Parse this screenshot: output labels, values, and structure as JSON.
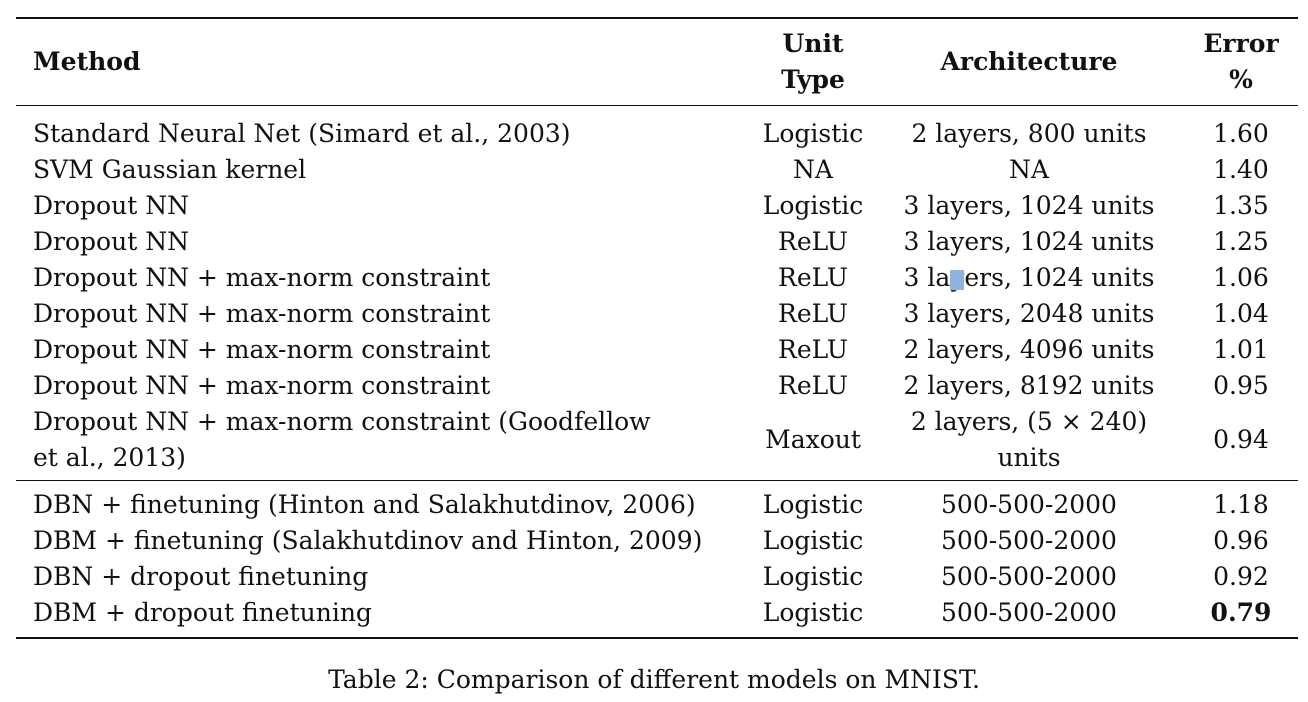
{
  "table": {
    "headers": {
      "method": "Method",
      "unit_type_line1": "Unit",
      "unit_type_line2": "Type",
      "architecture": "Architecture",
      "error_line1": "Error",
      "error_line2": "%"
    },
    "group1": [
      {
        "method": "Standard Neural Net (Simard et al., 2003)",
        "unit": "Logistic",
        "arch": "2 layers, 800 units",
        "error": "1.60"
      },
      {
        "method": "SVM Gaussian kernel",
        "unit": "NA",
        "arch": "NA",
        "error": "1.40"
      },
      {
        "method": "Dropout NN",
        "unit": "Logistic",
        "arch": "3 layers, 1024 units",
        "error": "1.35"
      },
      {
        "method": "Dropout NN",
        "unit": "ReLU",
        "arch": "3 layers, 1024 units",
        "error": "1.25"
      },
      {
        "method": "Dropout NN + max-norm constraint",
        "unit": "ReLU",
        "arch": "3 layers, 1024 units",
        "error": "1.06"
      },
      {
        "method": "Dropout NN + max-norm constraint",
        "unit": "ReLU",
        "arch": "3 layers, 2048 units",
        "error": "1.04"
      },
      {
        "method": "Dropout NN + max-norm constraint",
        "unit": "ReLU",
        "arch": "2 layers, 4096 units",
        "error": "1.01"
      },
      {
        "method": "Dropout NN + max-norm constraint",
        "unit": "ReLU",
        "arch": "2 layers, 8192 units",
        "error": "0.95"
      },
      {
        "method_line1": "Dropout NN + max-norm constraint (Goodfellow",
        "method_line2": "et al., 2013)",
        "unit": "Maxout",
        "arch_line1": "2 layers, (5 × 240)",
        "arch_line2": "units",
        "error": "0.94"
      }
    ],
    "group2": [
      {
        "method": "DBN + finetuning (Hinton and Salakhutdinov, 2006)",
        "unit": "Logistic",
        "arch": "500-500-2000",
        "error": "1.18"
      },
      {
        "method": "DBM + finetuning (Salakhutdinov and Hinton, 2009)",
        "unit": "Logistic",
        "arch": "500-500-2000",
        "error": "0.96"
      },
      {
        "method": "DBN + dropout finetuning",
        "unit": "Logistic",
        "arch": "500-500-2000",
        "error": "0.92"
      },
      {
        "method": "DBM + dropout finetuning",
        "unit": "Logistic",
        "arch": "500-500-2000",
        "error": "0.79"
      }
    ]
  },
  "caption": "Table 2: Comparison of different models on MNIST."
}
